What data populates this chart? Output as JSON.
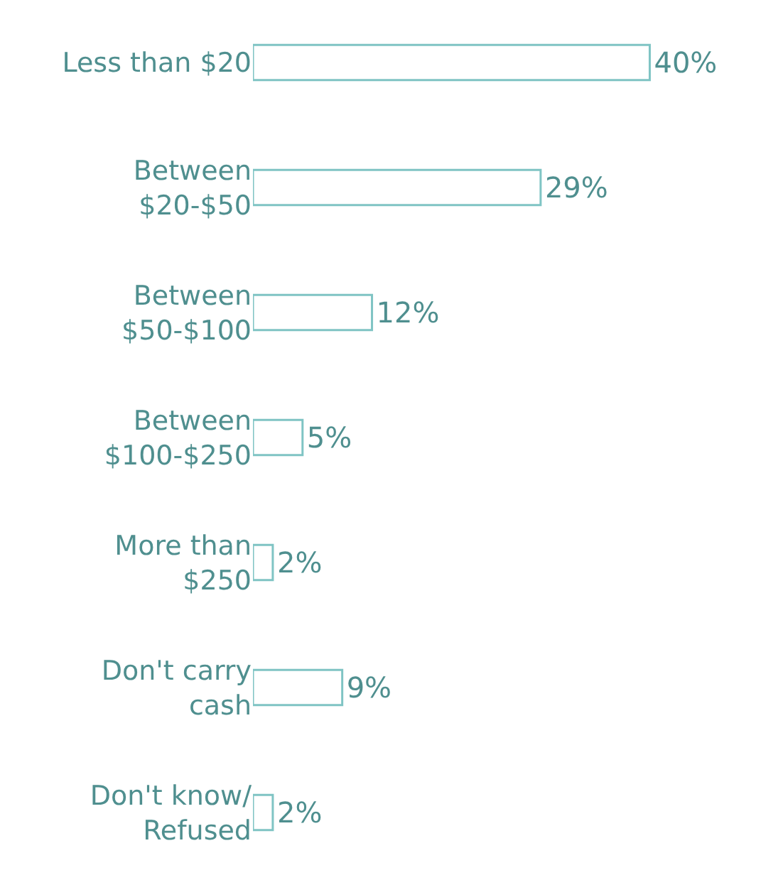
{
  "chart_data": {
    "type": "bar",
    "orientation": "horizontal",
    "categories": [
      "Less than $20",
      "Between $20-$50",
      "Between $50-$100",
      "Between $100-$250",
      "More than $250",
      "Don't carry cash",
      "Don't know/ Refused"
    ],
    "values": [
      40,
      29,
      12,
      5,
      2,
      9,
      2
    ],
    "value_labels": [
      "40%",
      "29%",
      "12%",
      "5%",
      "2%",
      "9%",
      "2%"
    ],
    "color": "#ffffff"
  }
}
